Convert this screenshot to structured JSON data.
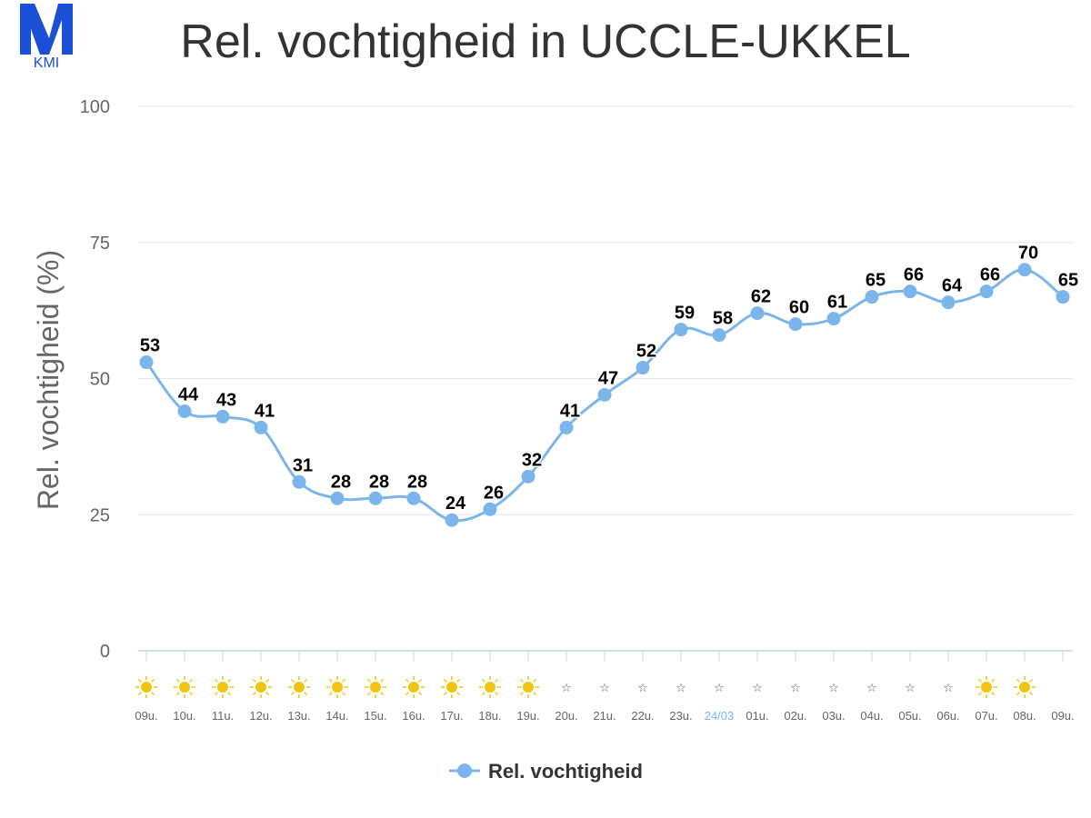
{
  "logo": {
    "text": "KMI"
  },
  "chart_data": {
    "type": "line",
    "title": "Rel. vochtigheid in UCCLE-UKKEL",
    "ylabel": "Rel. vochtigheid (%)",
    "xlabel": "",
    "ylim": [
      0,
      100
    ],
    "yticks": [
      "0",
      "25",
      "50",
      "75",
      "100"
    ],
    "categories": [
      "09u.",
      "10u.",
      "11u.",
      "12u.",
      "13u.",
      "14u.",
      "15u.",
      "16u.",
      "17u.",
      "18u.",
      "19u.",
      "20u.",
      "21u.",
      "22u.",
      "23u.",
      "24/03",
      "01u.",
      "02u.",
      "03u.",
      "04u.",
      "05u.",
      "06u.",
      "07u.",
      "08u.",
      "09u."
    ],
    "weather_icons": [
      "sun-icon",
      "sun-icon",
      "sun-icon",
      "sun-icon",
      "sun-icon",
      "sun-icon",
      "sun-icon",
      "sun-icon",
      "sun-icon",
      "sun-icon",
      "sun-icon",
      "star-icon",
      "star-icon",
      "star-icon",
      "star-icon",
      "star-icon",
      "star-icon",
      "star-icon",
      "star-icon",
      "star-icon",
      "star-icon",
      "star-icon",
      "sun-icon",
      "sun-icon",
      ""
    ],
    "series": [
      {
        "name": "Rel. vochtigheid",
        "values": [
          53,
          44,
          43,
          41,
          31,
          28,
          28,
          28,
          24,
          26,
          32,
          41,
          47,
          52,
          59,
          58,
          62,
          60,
          61,
          65,
          66,
          64,
          66,
          70,
          65
        ]
      }
    ],
    "grid": true,
    "legend": "bottom-center",
    "colors": {
      "line": "#7cb5ec",
      "grid": "#e6e6e6",
      "axis": "#ccd6eb",
      "date_label": "#7cb5ec",
      "sun": "#f1c40f",
      "label": "#000000"
    }
  }
}
